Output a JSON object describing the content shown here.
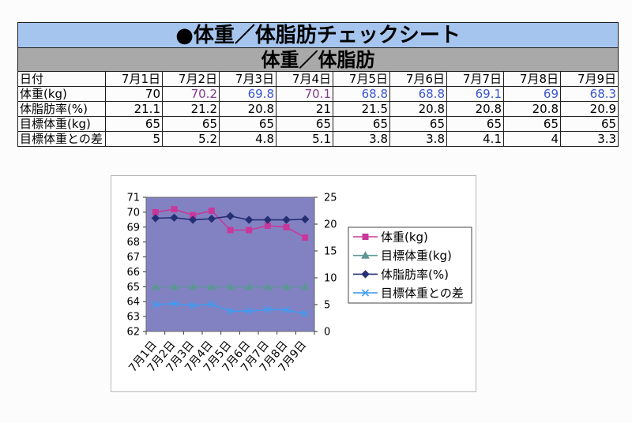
{
  "sheet": {
    "title": "●体重／体脂肪チェックシート",
    "subtitle": "体重／体脂肪",
    "title_background": "#a6c5ee",
    "subtitle_background": "#a9a9a9",
    "header": {
      "label": "日付",
      "dates": [
        "7月1日",
        "7月2日",
        "7月3日",
        "7月4日",
        "7月5日",
        "7月6日",
        "7月7日",
        "7月8日",
        "7月9日"
      ]
    },
    "rows": [
      {
        "label": "体重(kg)",
        "values": [
          70,
          70.2,
          69.8,
          70.1,
          68.8,
          68.8,
          69.1,
          69,
          68.3
        ],
        "colors": [
          "#000000",
          "#833a8c",
          "#3a57cf",
          "#833a8c",
          "#3a57cf",
          "#3a57cf",
          "#3a57cf",
          "#3a57cf",
          "#3a57cf"
        ]
      },
      {
        "label": "体脂肪率(%)",
        "values": [
          21.1,
          21.2,
          20.8,
          21,
          21.5,
          20.8,
          20.8,
          20.8,
          20.9
        ]
      },
      {
        "label": "目標体重(kg)",
        "values": [
          65,
          65,
          65,
          65,
          65,
          65,
          65,
          65,
          65
        ]
      },
      {
        "label": "目標体重との差",
        "values": [
          5,
          5.2,
          4.8,
          5.1,
          3.8,
          3.8,
          4.1,
          4,
          3.3
        ]
      }
    ]
  },
  "chart_data": {
    "type": "line",
    "categories": [
      "7月1日",
      "7月2日",
      "7月3日",
      "7月4日",
      "7月5日",
      "7月6日",
      "7月7日",
      "7月8日",
      "7月9日"
    ],
    "series": [
      {
        "name": "体重(kg)",
        "axis": "left",
        "marker": "square",
        "color": "#c8389a",
        "values": [
          70,
          70.2,
          69.8,
          70.1,
          68.8,
          68.8,
          69.1,
          69,
          68.3
        ]
      },
      {
        "name": "目標体重(kg)",
        "axis": "left",
        "marker": "triangle",
        "color": "#5e9696",
        "values": [
          65,
          65,
          65,
          65,
          65,
          65,
          65,
          65,
          65
        ]
      },
      {
        "name": "体脂肪率(%)",
        "axis": "right",
        "marker": "diamond",
        "color": "#262f73",
        "values": [
          21.1,
          21.2,
          20.8,
          21,
          21.5,
          20.8,
          20.8,
          20.8,
          20.9
        ]
      },
      {
        "name": "目標体重との差",
        "axis": "right",
        "marker": "x",
        "color": "#3f9cf2",
        "values": [
          5,
          5.2,
          4.8,
          5.1,
          3.8,
          3.8,
          4.1,
          4,
          3.3
        ]
      }
    ],
    "y_axis": {
      "min": 62,
      "max": 71,
      "ticks": [
        62,
        63,
        64,
        65,
        66,
        67,
        68,
        69,
        70,
        71
      ]
    },
    "y2_axis": {
      "min": 0,
      "max": 25,
      "ticks": [
        0,
        5,
        10,
        15,
        20,
        25
      ]
    },
    "legend": "right",
    "grid": false,
    "plot_background": "#8282c3"
  }
}
